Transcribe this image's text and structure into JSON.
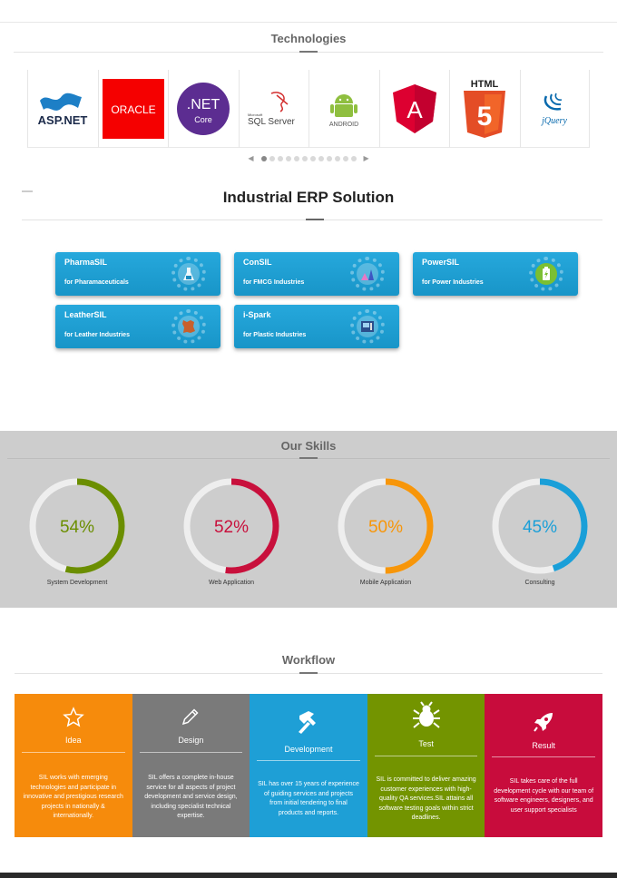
{
  "technologies": {
    "title": "Technologies",
    "logos": [
      {
        "name": "aspnet-logo",
        "text": "ASP.NET"
      },
      {
        "name": "oracle-logo",
        "text": "ORACLE"
      },
      {
        "name": "dotnet-core-logo",
        "text": ".NET",
        "sub": "Core"
      },
      {
        "name": "sql-server-logo",
        "small": "Microsoft",
        "text": "SQL Server"
      },
      {
        "name": "android-logo",
        "text": "ANDROID"
      },
      {
        "name": "angular-logo",
        "text": "A"
      },
      {
        "name": "html5-logo",
        "text": "HTML",
        "num": "5"
      },
      {
        "name": "jquery-logo",
        "text": "jQuery"
      }
    ],
    "carousel_dots": 12,
    "active_dot": 0
  },
  "erp": {
    "title": "Industrial ERP Solution",
    "products": [
      {
        "name": "PharmaSIL",
        "sub": "for Pharamaceuticals",
        "icon": "flask-icon"
      },
      {
        "name": "ConSIL",
        "sub": "for FMCG Industries",
        "icon": "beakers-icon"
      },
      {
        "name": "PowerSIL",
        "sub": "for Power Industries",
        "icon": "battery-icon"
      },
      {
        "name": "LeatherSIL",
        "sub": "for Leather Industries",
        "icon": "leather-icon"
      },
      {
        "name": "i-Spark",
        "sub": "for Plastic Industries",
        "icon": "machine-icon"
      }
    ]
  },
  "skills": {
    "title": "Our Skills",
    "items": [
      {
        "label": "System Development",
        "percent": 54,
        "display": "54%",
        "color": "#6b8e00"
      },
      {
        "label": "Web Application",
        "percent": 52,
        "display": "52%",
        "color": "#c8103c"
      },
      {
        "label": "Mobile Application",
        "percent": 50,
        "display": "50%",
        "color": "#f7960a"
      },
      {
        "label": "Consulting",
        "percent": 45,
        "display": "45%",
        "color": "#1a9fd8"
      }
    ]
  },
  "workflow": {
    "title": "Workflow",
    "steps": [
      {
        "name": "Idea",
        "icon": "star-icon",
        "color": "#f68b0c",
        "desc": "SIL works with emerging technologies and participate in innovative and prestigious research projects in nationally & internationally."
      },
      {
        "name": "Design",
        "icon": "pencil-icon",
        "color": "#7a7a7a",
        "desc": "SIL offers a complete in-house service for all aspects of project development and service design, including specialist technical expertise."
      },
      {
        "name": "Development",
        "icon": "hammer-icon",
        "color": "#1e9fd6",
        "desc": "SIL has over 15 years of experience of guiding services and projects from initial tendering to final products and reports."
      },
      {
        "name": "Test",
        "icon": "bug-icon",
        "color": "#739400",
        "desc": "SIL is committed to deliver amazing customer experiences with high-quality QA services.SIL attains all software testing goals within strict deadlines."
      },
      {
        "name": "Result",
        "icon": "rocket-icon",
        "color": "#c80c3c",
        "desc": "SIL takes care of the full development cycle with our team of software engineers, designers, and user support specialists"
      }
    ]
  }
}
